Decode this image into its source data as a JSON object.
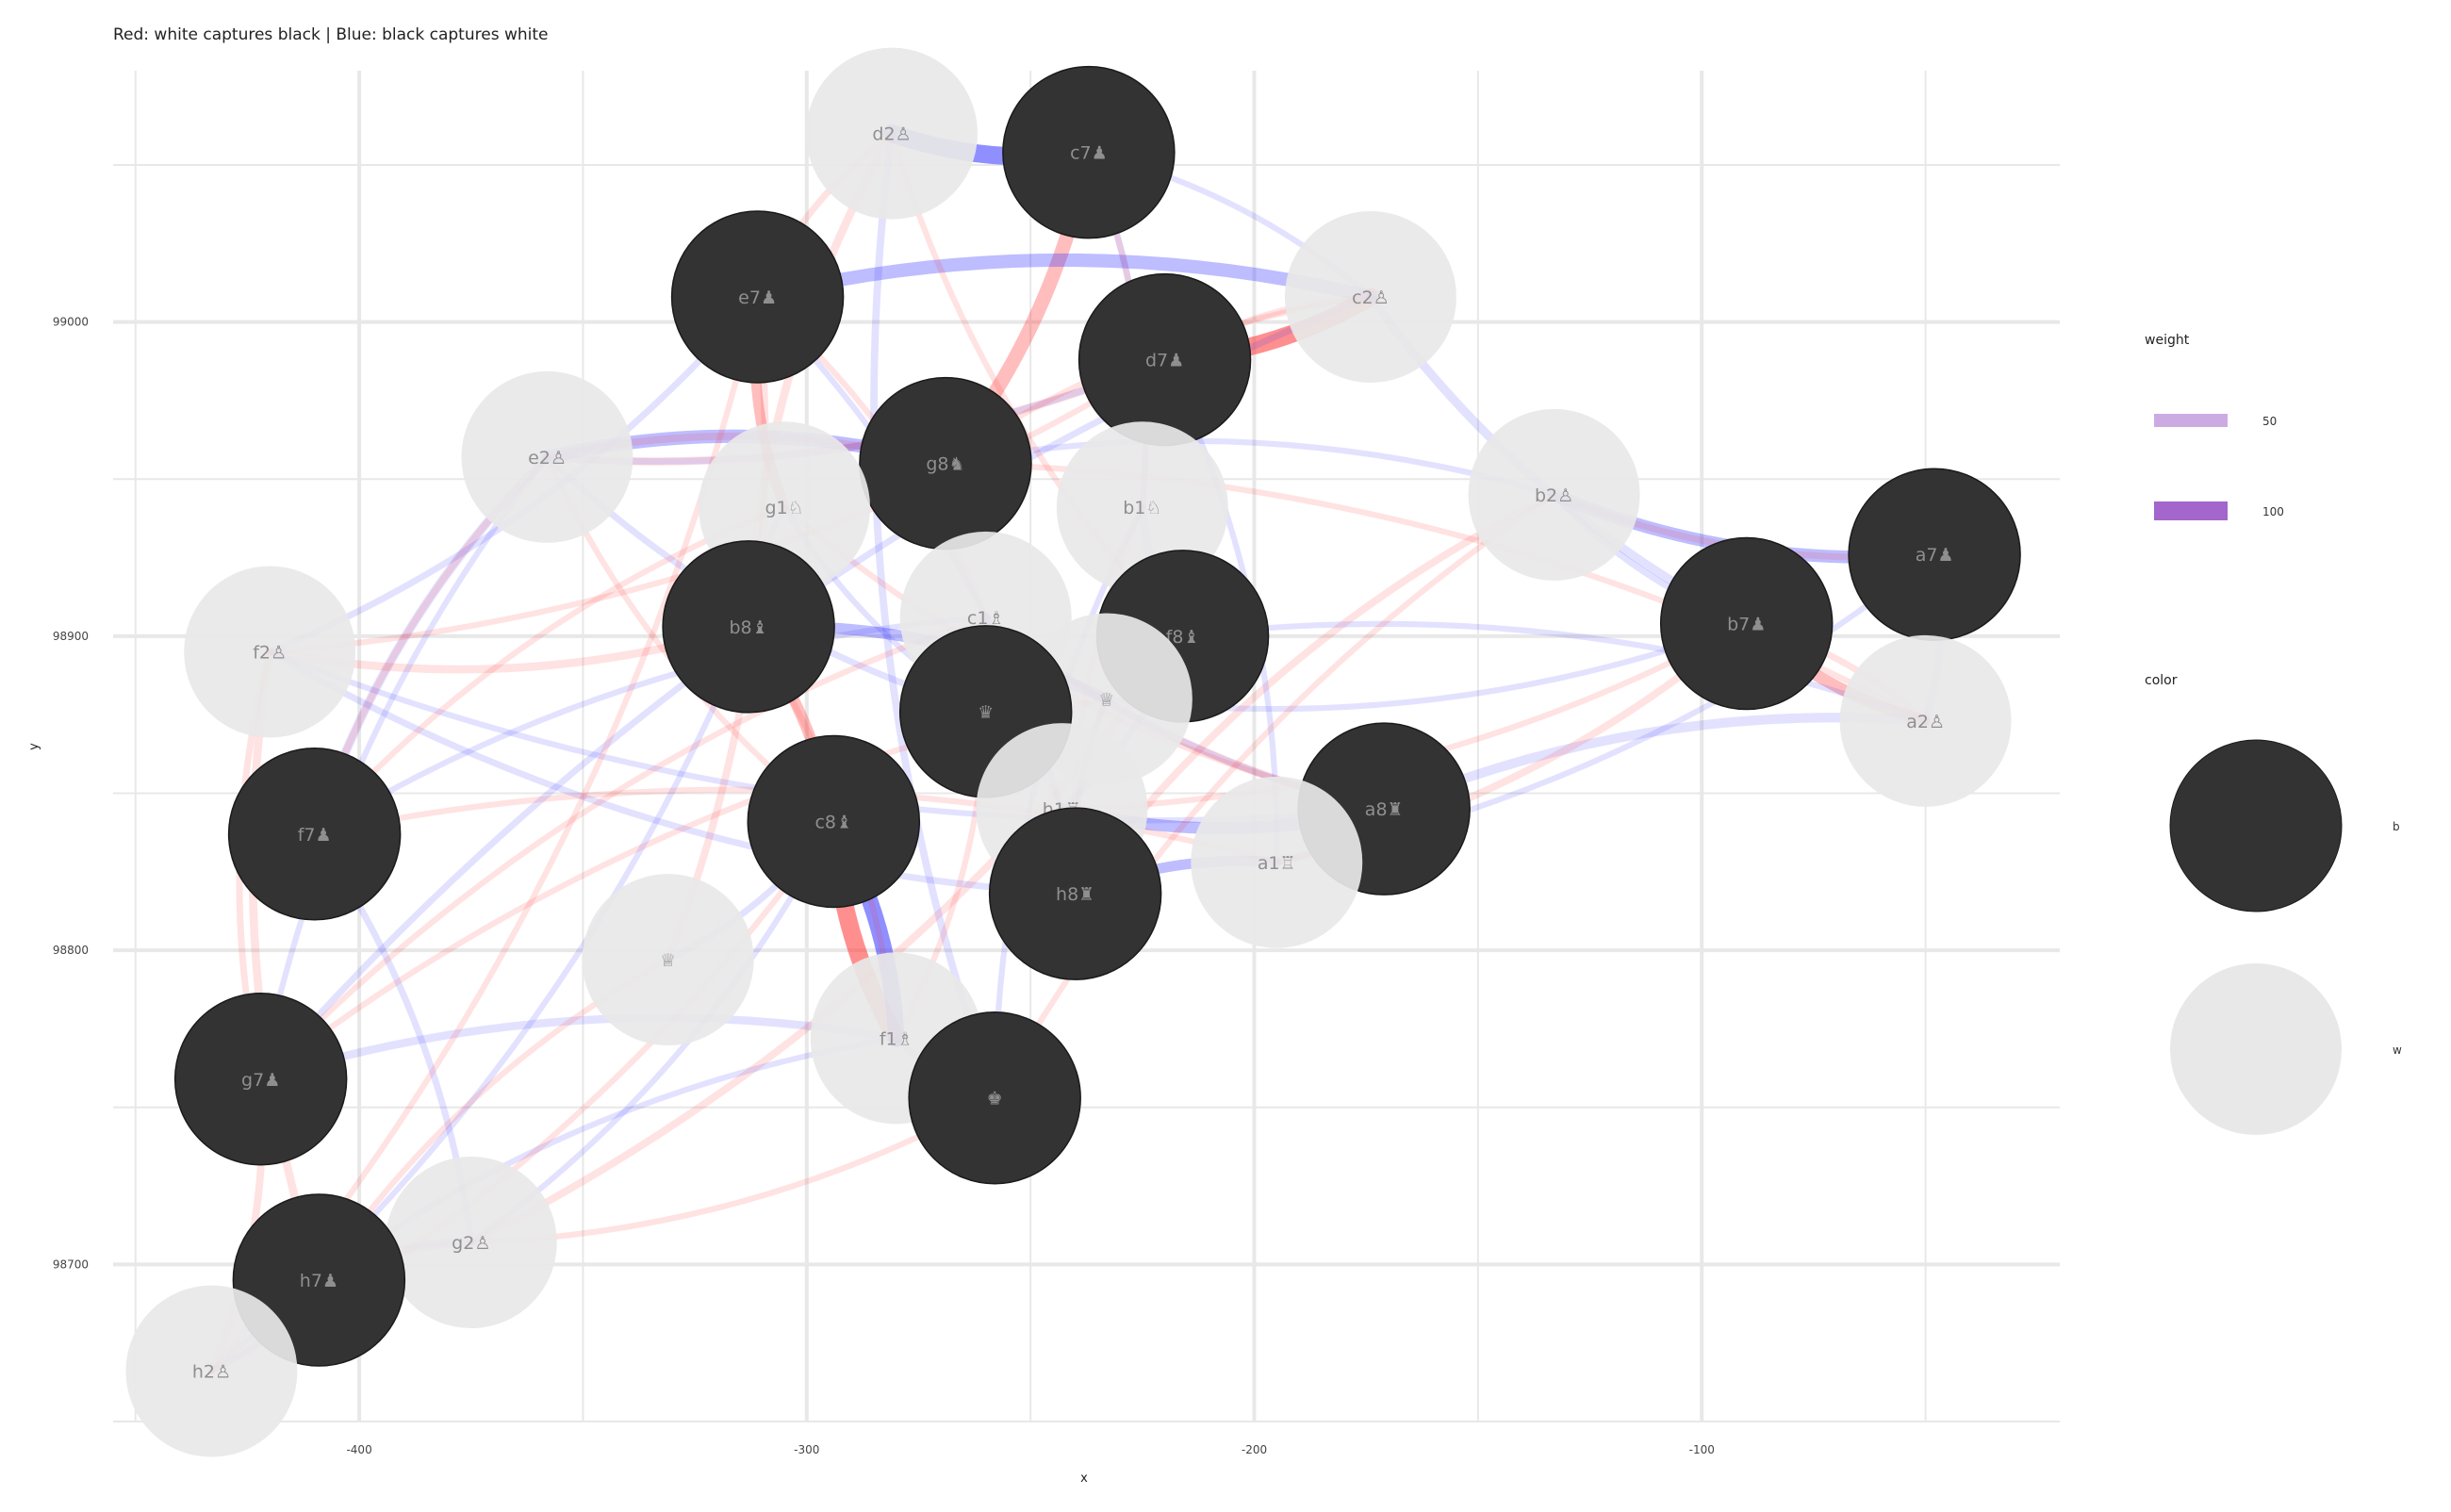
{
  "chart_data": {
    "type": "network",
    "title": "Red: white captures black | Blue: black captures white",
    "xlabel": "x",
    "ylabel": "y",
    "xlim": [
      -455,
      -20
    ],
    "ylim": [
      98650,
      99080
    ],
    "x_ticks": [
      -400,
      -300,
      -200,
      -100
    ],
    "x_tick_labels": [
      "-400",
      "-300",
      "-200",
      "-100"
    ],
    "y_ticks": [
      98700,
      98800,
      98900,
      99000
    ],
    "y_tick_labels": [
      "98700",
      "98800",
      "98900",
      "99000"
    ],
    "grid": true,
    "legend_position": "right",
    "legend": {
      "weight": {
        "title": "weight",
        "entries": [
          {
            "label": "50",
            "value": 50
          },
          {
            "label": "100",
            "value": 100
          }
        ],
        "color": "#a366cc"
      },
      "color": {
        "title": "color",
        "entries": [
          {
            "label": "b",
            "color": "#333333"
          },
          {
            "label": "w",
            "color": "#e8e8e8"
          }
        ]
      }
    },
    "node_colors": {
      "b": "#333333",
      "w": "#e8e8e8"
    },
    "label_color": "#8f8f8f",
    "edge_colors": {
      "white_captures_black": "#ff3333",
      "black_captures_white": "#3333ff"
    },
    "nodes": [
      {
        "id": "d2",
        "label": "d2",
        "glyph": "♙",
        "color": "w",
        "x": -281,
        "y": 99060
      },
      {
        "id": "c7",
        "label": "c7",
        "glyph": "♟",
        "color": "b",
        "x": -237,
        "y": 99054
      },
      {
        "id": "c2",
        "label": "c2",
        "glyph": "♙",
        "color": "w",
        "x": -174,
        "y": 99008
      },
      {
        "id": "e7",
        "label": "e7",
        "glyph": "♟",
        "color": "b",
        "x": -311,
        "y": 99008
      },
      {
        "id": "d7",
        "label": "d7",
        "glyph": "♟",
        "color": "b",
        "x": -220,
        "y": 98988
      },
      {
        "id": "e2",
        "label": "e2",
        "glyph": "♙",
        "color": "w",
        "x": -358,
        "y": 98957
      },
      {
        "id": "g8",
        "label": "g8",
        "glyph": "♞",
        "color": "b",
        "x": -269,
        "y": 98955
      },
      {
        "id": "g1",
        "label": "g1",
        "glyph": "♘",
        "color": "w",
        "x": -305,
        "y": 98941
      },
      {
        "id": "b1",
        "label": "b1",
        "glyph": "♘",
        "color": "w",
        "x": -225,
        "y": 98941
      },
      {
        "id": "b2",
        "label": "b2",
        "glyph": "♙",
        "color": "w",
        "x": -133,
        "y": 98945
      },
      {
        "id": "a7",
        "label": "a7",
        "glyph": "♟",
        "color": "b",
        "x": -48,
        "y": 98926
      },
      {
        "id": "c1",
        "label": "c1",
        "glyph": "♗",
        "color": "w",
        "x": -260,
        "y": 98906
      },
      {
        "id": "b8",
        "label": "b8",
        "glyph": "♝",
        "color": "b",
        "x": -313,
        "y": 98903
      },
      {
        "id": "f8",
        "label": "f8",
        "glyph": "♝",
        "color": "b",
        "x": -216,
        "y": 98900
      },
      {
        "id": "b7",
        "label": "b7",
        "glyph": "♟",
        "color": "b",
        "x": -90,
        "y": 98904
      },
      {
        "id": "f2",
        "label": "f2",
        "glyph": "♙",
        "color": "w",
        "x": -420,
        "y": 98895
      },
      {
        "id": "d1",
        "label": "",
        "glyph": "♕",
        "color": "w",
        "x": -233,
        "y": 98880
      },
      {
        "id": "d8",
        "label": "",
        "glyph": "♛",
        "color": "b",
        "x": -260,
        "y": 98876
      },
      {
        "id": "a2",
        "label": "a2",
        "glyph": "♙",
        "color": "w",
        "x": -50,
        "y": 98873
      },
      {
        "id": "h1",
        "label": "h1",
        "glyph": "♖",
        "color": "w",
        "x": -243,
        "y": 98845
      },
      {
        "id": "f7",
        "label": "f7",
        "glyph": "♟",
        "color": "b",
        "x": -410,
        "y": 98837
      },
      {
        "id": "c8",
        "label": "c8",
        "glyph": "♝",
        "color": "b",
        "x": -294,
        "y": 98841
      },
      {
        "id": "a8",
        "label": "a8",
        "glyph": "♜",
        "color": "b",
        "x": -171,
        "y": 98845
      },
      {
        "id": "a1",
        "label": "a1",
        "glyph": "♖",
        "color": "w",
        "x": -195,
        "y": 98828
      },
      {
        "id": "h8",
        "label": "h8",
        "glyph": "♜",
        "color": "b",
        "x": -240,
        "y": 98818
      },
      {
        "id": "d1q",
        "label": "",
        "glyph": "♕",
        "color": "w",
        "x": -331,
        "y": 98797
      },
      {
        "id": "f1",
        "label": "f1",
        "glyph": "♗",
        "color": "w",
        "x": -280,
        "y": 98772
      },
      {
        "id": "g7",
        "label": "g7",
        "glyph": "♟",
        "color": "b",
        "x": -422,
        "y": 98759
      },
      {
        "id": "e8",
        "label": "",
        "glyph": "♚",
        "color": "b",
        "x": -258,
        "y": 98753
      },
      {
        "id": "g2",
        "label": "g2",
        "glyph": "♙",
        "color": "w",
        "x": -375,
        "y": 98707
      },
      {
        "id": "h7",
        "label": "h7",
        "glyph": "♟",
        "color": "b",
        "x": -409,
        "y": 98695
      },
      {
        "id": "h2",
        "label": "h2",
        "glyph": "♙",
        "color": "w",
        "x": -433,
        "y": 98666
      }
    ],
    "edges": [
      {
        "source": "c7",
        "target": "d2",
        "side": "b",
        "weight": 100
      },
      {
        "source": "d7",
        "target": "c2",
        "side": "w",
        "weight": 100
      },
      {
        "source": "c8",
        "target": "f1",
        "side": "w",
        "weight": 100
      },
      {
        "source": "c8",
        "target": "f1",
        "side": "b",
        "weight": 90
      },
      {
        "source": "g8",
        "target": "c7",
        "side": "w",
        "weight": 75
      },
      {
        "source": "e7",
        "target": "c2",
        "side": "b",
        "weight": 70
      },
      {
        "source": "e2",
        "target": "g8",
        "side": "b",
        "weight": 70
      },
      {
        "source": "a7",
        "target": "b2",
        "side": "b",
        "weight": 65
      },
      {
        "source": "b7",
        "target": "a2",
        "side": "w",
        "weight": 60
      },
      {
        "source": "a8",
        "target": "h1",
        "side": "b",
        "weight": 60
      },
      {
        "source": "b8",
        "target": "d1",
        "side": "b",
        "weight": 55
      },
      {
        "source": "c8",
        "target": "b8",
        "side": "w",
        "weight": 55
      },
      {
        "source": "e7",
        "target": "g1",
        "side": "w",
        "weight": 50
      },
      {
        "source": "d8",
        "target": "c1",
        "side": "b",
        "weight": 50
      },
      {
        "source": "h8",
        "target": "a1",
        "side": "b",
        "weight": 50
      },
      {
        "source": "a8",
        "target": "a2",
        "side": "b",
        "weight": 45
      },
      {
        "source": "h7",
        "target": "g2",
        "side": "b",
        "weight": 45
      },
      {
        "source": "f7",
        "target": "e2",
        "side": "b",
        "weight": 40
      },
      {
        "source": "f8",
        "target": "b1",
        "side": "b",
        "weight": 40
      },
      {
        "source": "b7",
        "target": "c2",
        "side": "b",
        "weight": 40
      },
      {
        "source": "g7",
        "target": "f1",
        "side": "b",
        "weight": 35
      },
      {
        "source": "f2",
        "target": "b8",
        "side": "w",
        "weight": 35
      },
      {
        "source": "e2",
        "target": "d7",
        "side": "w",
        "weight": 35
      },
      {
        "source": "d2",
        "target": "b8",
        "side": "w",
        "weight": 35
      },
      {
        "source": "c1",
        "target": "a8",
        "side": "w",
        "weight": 35
      },
      {
        "source": "f2",
        "target": "h7",
        "side": "w",
        "weight": 35
      },
      {
        "source": "g2",
        "target": "f8",
        "side": "w",
        "weight": 30
      },
      {
        "source": "b2",
        "target": "h8",
        "side": "w",
        "weight": 30
      },
      {
        "source": "a1",
        "target": "b7",
        "side": "w",
        "weight": 30
      },
      {
        "source": "d1q",
        "target": "e7",
        "side": "w",
        "weight": 30
      },
      {
        "source": "h2",
        "target": "g7",
        "side": "w",
        "weight": 30
      },
      {
        "source": "e8",
        "target": "d2",
        "side": "b",
        "weight": 30
      },
      {
        "source": "f8",
        "target": "h1",
        "side": "b",
        "weight": 30
      },
      {
        "source": "g8",
        "target": "e2",
        "side": "w",
        "weight": 30
      },
      {
        "source": "a7",
        "target": "a2",
        "side": "b",
        "weight": 30
      },
      {
        "source": "c7",
        "target": "b1",
        "side": "b",
        "weight": 25
      },
      {
        "source": "b8",
        "target": "g1",
        "side": "b",
        "weight": 25
      },
      {
        "source": "h8",
        "target": "f2",
        "side": "b",
        "weight": 25
      },
      {
        "source": "g7",
        "target": "c2",
        "side": "b",
        "weight": 25
      },
      {
        "source": "f7",
        "target": "g2",
        "side": "b",
        "weight": 25
      },
      {
        "source": "e7",
        "target": "f2",
        "side": "b",
        "weight": 25
      },
      {
        "source": "d7",
        "target": "e2",
        "side": "b",
        "weight": 25
      },
      {
        "source": "c8",
        "target": "d1q",
        "side": "b",
        "weight": 25
      },
      {
        "source": "b7",
        "target": "b2",
        "side": "b",
        "weight": 25
      },
      {
        "source": "a8",
        "target": "c1",
        "side": "b",
        "weight": 25
      },
      {
        "source": "h7",
        "target": "h2",
        "side": "b",
        "weight": 25
      },
      {
        "source": "e8",
        "target": "f1",
        "side": "b",
        "weight": 25
      },
      {
        "source": "d8",
        "target": "e2",
        "side": "b",
        "weight": 25
      },
      {
        "source": "g8",
        "target": "b2",
        "side": "b",
        "weight": 20
      },
      {
        "source": "f8",
        "target": "a2",
        "side": "b",
        "weight": 20
      },
      {
        "source": "c7",
        "target": "c2",
        "side": "b",
        "weight": 20
      },
      {
        "source": "d7",
        "target": "a1",
        "side": "b",
        "weight": 20
      },
      {
        "source": "e7",
        "target": "h1",
        "side": "b",
        "weight": 20
      },
      {
        "source": "b8",
        "target": "h2",
        "side": "b",
        "weight": 20
      },
      {
        "source": "c8",
        "target": "g2",
        "side": "b",
        "weight": 20
      },
      {
        "source": "h8",
        "target": "d1",
        "side": "b",
        "weight": 20
      },
      {
        "source": "a7",
        "target": "a1",
        "side": "b",
        "weight": 20
      },
      {
        "source": "g7",
        "target": "e2",
        "side": "b",
        "weight": 20
      },
      {
        "source": "h7",
        "target": "f1",
        "side": "b",
        "weight": 20
      },
      {
        "source": "f7",
        "target": "c1",
        "side": "b",
        "weight": 20
      },
      {
        "source": "d8",
        "target": "g1",
        "side": "b",
        "weight": 20
      },
      {
        "source": "e8",
        "target": "b1",
        "side": "b",
        "weight": 20
      },
      {
        "source": "a8",
        "target": "f2",
        "side": "b",
        "weight": 20
      },
      {
        "source": "b7",
        "target": "d1",
        "side": "b",
        "weight": 20
      },
      {
        "source": "d2",
        "target": "e7",
        "side": "w",
        "weight": 25
      },
      {
        "source": "c2",
        "target": "d7",
        "side": "w",
        "weight": 25
      },
      {
        "source": "e2",
        "target": "f7",
        "side": "w",
        "weight": 25
      },
      {
        "source": "f2",
        "target": "g7",
        "side": "w",
        "weight": 25
      },
      {
        "source": "g2",
        "target": "h7",
        "side": "w",
        "weight": 25
      },
      {
        "source": "b2",
        "target": "a7",
        "side": "w",
        "weight": 25
      },
      {
        "source": "a2",
        "target": "b7",
        "side": "w",
        "weight": 25
      },
      {
        "source": "g1",
        "target": "f7",
        "side": "w",
        "weight": 20
      },
      {
        "source": "b1",
        "target": "c7",
        "side": "w",
        "weight": 20
      },
      {
        "source": "c1",
        "target": "g7",
        "side": "w",
        "weight": 20
      },
      {
        "source": "f1",
        "target": "b8",
        "side": "w",
        "weight": 20
      },
      {
        "source": "d1",
        "target": "h8",
        "side": "w",
        "weight": 20
      },
      {
        "source": "h1",
        "target": "d8",
        "side": "w",
        "weight": 20
      },
      {
        "source": "a1",
        "target": "a8",
        "side": "w",
        "weight": 20
      },
      {
        "source": "d1q",
        "target": "h7",
        "side": "w",
        "weight": 20
      },
      {
        "source": "h2",
        "target": "c8",
        "side": "w",
        "weight": 20
      },
      {
        "source": "g2",
        "target": "e8",
        "side": "w",
        "weight": 20
      },
      {
        "source": "c2",
        "target": "g8",
        "side": "w",
        "weight": 20
      },
      {
        "source": "d2",
        "target": "f8",
        "side": "w",
        "weight": 20
      },
      {
        "source": "e2",
        "target": "c8",
        "side": "w",
        "weight": 20
      },
      {
        "source": "f2",
        "target": "d7",
        "side": "w",
        "weight": 20
      },
      {
        "source": "b2",
        "target": "e8",
        "side": "w",
        "weight": 20
      },
      {
        "source": "a2",
        "target": "g8",
        "side": "w",
        "weight": 20
      },
      {
        "source": "g1",
        "target": "a8",
        "side": "w",
        "weight": 20
      },
      {
        "source": "b1",
        "target": "h8",
        "side": "w",
        "weight": 20
      },
      {
        "source": "c1",
        "target": "e7",
        "side": "w",
        "weight": 20
      },
      {
        "source": "f1",
        "target": "d8",
        "side": "w",
        "weight": 20
      },
      {
        "source": "h1",
        "target": "b7",
        "side": "w",
        "weight": 20
      },
      {
        "source": "a1",
        "target": "f7",
        "side": "w",
        "weight": 20
      },
      {
        "source": "d1",
        "target": "g7",
        "side": "w",
        "weight": 20
      },
      {
        "source": "h2",
        "target": "e7",
        "side": "w",
        "weight": 20
      }
    ]
  }
}
